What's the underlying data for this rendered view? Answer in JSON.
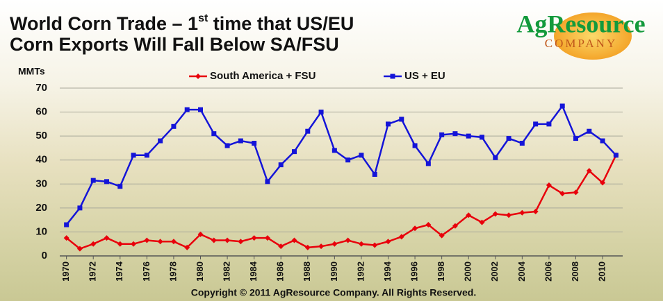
{
  "chart_data": {
    "type": "line",
    "title_line1": [
      "World Corn Trade – 1",
      "st",
      " time that US/EU"
    ],
    "title_line2": "Corn Exports Will Fall Below SA/FSU",
    "logo": {
      "name": "AgResource",
      "sub": "COMPANY"
    },
    "y_label": "MMTs",
    "footer": "Copyright © 2011 AgResource Company.  All Rights Reserved.",
    "x": [
      1970,
      1971,
      1972,
      1973,
      1974,
      1975,
      1976,
      1977,
      1978,
      1979,
      1980,
      1981,
      1982,
      1983,
      1984,
      1985,
      1986,
      1987,
      1988,
      1989,
      1990,
      1991,
      1992,
      1993,
      1994,
      1995,
      1996,
      1997,
      1998,
      1999,
      2000,
      2001,
      2002,
      2003,
      2004,
      2005,
      2006,
      2007,
      2008,
      2009,
      2010,
      2011
    ],
    "series": [
      {
        "name": "South America + FSU",
        "color": "#e8000b",
        "marker": "diamond",
        "values": [
          7.5,
          3,
          5,
          7.5,
          5,
          5,
          6.5,
          6,
          6,
          3.5,
          9,
          6.5,
          6.5,
          6,
          7.5,
          7.5,
          4,
          6.5,
          3.5,
          4,
          5,
          6.5,
          5,
          4.5,
          6,
          8,
          11.5,
          13,
          8.5,
          12.5,
          17,
          14,
          17.5,
          17,
          18,
          18.5,
          29.5,
          26,
          26.5,
          35.5,
          30.5,
          42
        ]
      },
      {
        "name": "US + EU",
        "color": "#1414d8",
        "marker": "square",
        "values": [
          13,
          20,
          31.5,
          31,
          29,
          42,
          42,
          48,
          54,
          61,
          61,
          51,
          46,
          48,
          47,
          31,
          38,
          43.5,
          52,
          60,
          44,
          40,
          42,
          34,
          55,
          57,
          46,
          38.5,
          50.5,
          51,
          50,
          49.5,
          41,
          49,
          47,
          55,
          55,
          62.5,
          49,
          52,
          48,
          42
        ]
      }
    ],
    "xlim": [
      1969.5,
      2011.5
    ],
    "xticks": [
      1970,
      1972,
      1974,
      1976,
      1978,
      1980,
      1982,
      1984,
      1986,
      1988,
      1990,
      1992,
      1994,
      1996,
      1998,
      2000,
      2002,
      2004,
      2006,
      2008,
      2010
    ],
    "ylim": [
      0,
      70
    ],
    "yticks": [
      0,
      10,
      20,
      30,
      40,
      50,
      60,
      70
    ],
    "grid": true
  }
}
